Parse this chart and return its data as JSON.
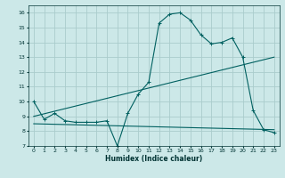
{
  "xlabel": "Humidex (Indice chaleur)",
  "background_color": "#cce8e8",
  "grid_color": "#aacccc",
  "line_color": "#006060",
  "xlim": [
    -0.5,
    23.5
  ],
  "ylim": [
    7,
    16.5
  ],
  "xticks": [
    0,
    1,
    2,
    3,
    4,
    5,
    6,
    7,
    8,
    9,
    10,
    11,
    12,
    13,
    14,
    15,
    16,
    17,
    18,
    19,
    20,
    21,
    22,
    23
  ],
  "yticks": [
    7,
    8,
    9,
    10,
    11,
    12,
    13,
    14,
    15,
    16
  ],
  "series": [
    {
      "x": [
        0,
        1,
        2,
        3,
        4,
        5,
        6,
        7,
        8,
        9,
        10,
        11,
        12,
        13,
        14,
        15,
        16,
        17,
        18,
        19,
        20,
        21,
        22,
        23
      ],
      "y": [
        10,
        8.8,
        9.2,
        8.7,
        8.6,
        8.6,
        8.6,
        8.7,
        7.0,
        9.2,
        10.5,
        11.3,
        15.3,
        15.9,
        16.0,
        15.5,
        14.5,
        13.9,
        14.0,
        14.3,
        13.0,
        9.4,
        8.1,
        7.9
      ],
      "marker": "+"
    },
    {
      "x": [
        0,
        23
      ],
      "y": [
        9.0,
        13.0
      ],
      "marker": null
    },
    {
      "x": [
        0,
        23
      ],
      "y": [
        8.5,
        8.1
      ],
      "marker": null
    }
  ]
}
